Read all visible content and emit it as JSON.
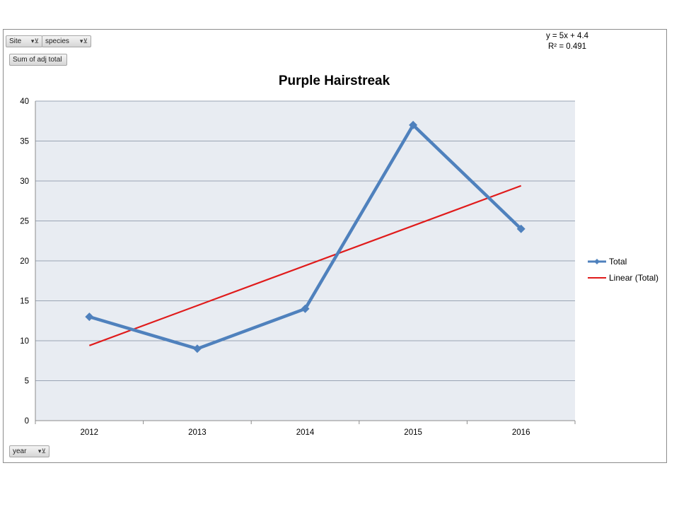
{
  "filters": {
    "site_label": "Site",
    "species_label": "species",
    "value_field_label": "Sum of adj total",
    "year_label": "year",
    "filter_icon": "filter-dropdown-icon"
  },
  "trendline": {
    "equation": "y = 5x + 4.4",
    "r_squared": "R² = 0.491"
  },
  "colors": {
    "series": "#4f81bd",
    "trend": "#e01b1b",
    "plot_bg": "#e8ecf2",
    "grid": "#9aa4b4"
  },
  "chart_data": {
    "type": "line",
    "title": "Purple Hairstreak",
    "xlabel": "",
    "ylabel": "",
    "categories": [
      "2012",
      "2013",
      "2014",
      "2015",
      "2016"
    ],
    "series": [
      {
        "name": "Total",
        "values": [
          13,
          9,
          14,
          37,
          24
        ],
        "marker": "diamond"
      }
    ],
    "trendline": {
      "name": "Linear (Total)",
      "slope": 5,
      "intercept": 4.4,
      "r2": 0.491
    },
    "ylim": [
      0,
      40
    ],
    "yticks": [
      0,
      5,
      10,
      15,
      20,
      25,
      30,
      35,
      40
    ],
    "grid": true,
    "legend": "right"
  }
}
